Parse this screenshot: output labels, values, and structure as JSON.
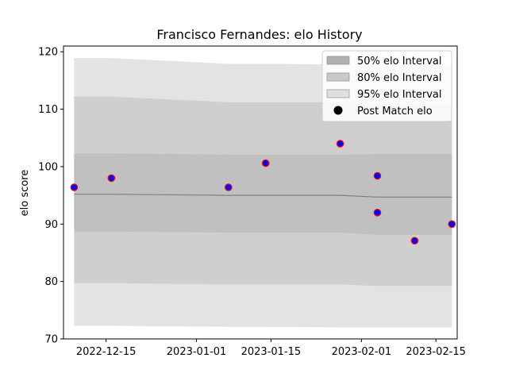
{
  "chart_data": {
    "type": "line",
    "title": "Francisco Fernandes: elo History",
    "xlabel": "",
    "ylabel": "elo score",
    "xlim": [
      "2022-12-07",
      "2023-02-19"
    ],
    "ylim": [
      70,
      121
    ],
    "x_ticks": [
      "2022-12-15",
      "2023-01-01",
      "2023-01-15",
      "2023-02-01",
      "2023-02-15"
    ],
    "y_ticks": [
      70,
      80,
      90,
      100,
      110,
      120
    ],
    "band_dates": [
      "2022-12-09",
      "2022-12-16",
      "2023-01-07",
      "2023-01-14",
      "2023-01-28",
      "2023-02-04",
      "2023-02-11",
      "2023-02-18"
    ],
    "series": [
      {
        "name": "95% elo Interval",
        "color": "#e3e3e3",
        "upper": [
          118.9,
          118.9,
          117.9,
          117.9,
          117.8,
          117.8,
          117.8,
          117.8
        ],
        "lower": [
          72.3,
          72.3,
          72.1,
          72.1,
          72.0,
          72.0,
          72.0,
          72.0
        ]
      },
      {
        "name": "80% elo Interval",
        "color": "#cfcfcf",
        "upper": [
          112.2,
          112.2,
          111.2,
          111.2,
          111.2,
          111.0,
          111.0,
          111.0
        ],
        "lower": [
          79.7,
          79.7,
          79.5,
          79.5,
          79.5,
          79.2,
          79.2,
          79.2
        ]
      },
      {
        "name": "50% elo Interval",
        "color": "#c0c0c0",
        "upper": [
          102.3,
          102.3,
          102.1,
          102.1,
          102.1,
          102.2,
          102.2,
          102.2
        ],
        "lower": [
          88.7,
          88.7,
          88.5,
          88.5,
          88.5,
          88.1,
          88.1,
          88.1
        ]
      },
      {
        "name": "mean",
        "color": "#7f7f7f",
        "values": [
          95.2,
          95.2,
          95.0,
          95.0,
          95.0,
          94.7,
          94.7,
          94.7
        ]
      },
      {
        "name": "Post Match elo",
        "color": "#0000ff",
        "edge_color": "#ff0000",
        "points": [
          {
            "x": "2022-12-09",
            "y": 96.4
          },
          {
            "x": "2022-12-16",
            "y": 98.0
          },
          {
            "x": "2023-01-07",
            "y": 96.4
          },
          {
            "x": "2023-01-14",
            "y": 100.6
          },
          {
            "x": "2023-01-28",
            "y": 104.0
          },
          {
            "x": "2023-02-04",
            "y": 98.4
          },
          {
            "x": "2023-02-04",
            "y": 92.0
          },
          {
            "x": "2023-02-11",
            "y": 87.1
          },
          {
            "x": "2023-02-18",
            "y": 90.0
          }
        ]
      }
    ],
    "legend": {
      "placement": "top-right",
      "entries": [
        "50% elo Interval",
        "80% elo Interval",
        "95% elo Interval",
        "Post Match elo"
      ],
      "swatch_colors": [
        "#b0b0b0",
        "#c8c8c8",
        "#e0e0e0",
        "#000000"
      ]
    }
  }
}
